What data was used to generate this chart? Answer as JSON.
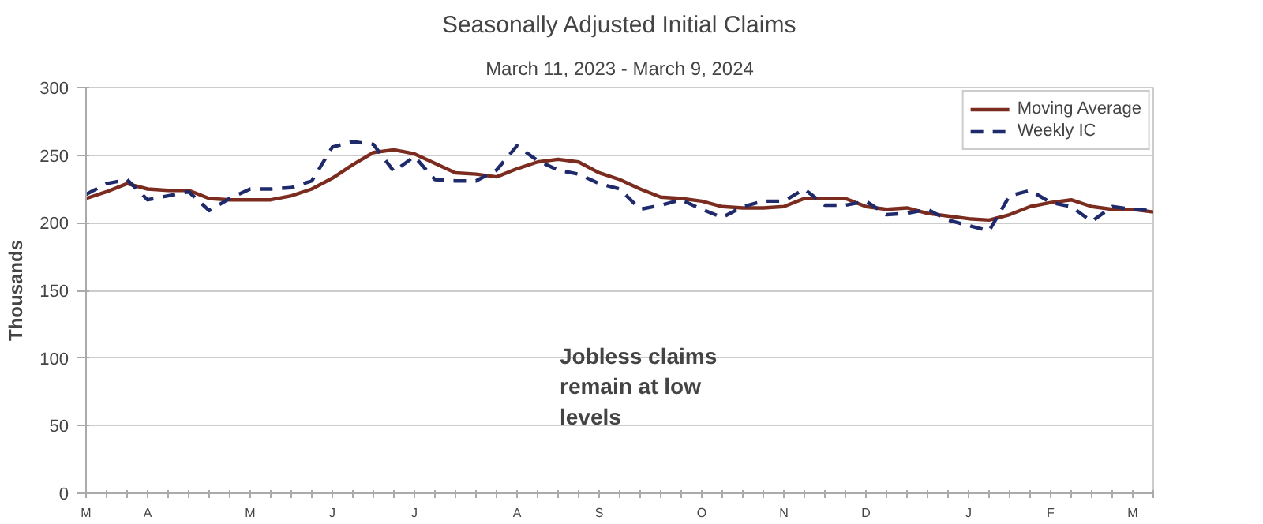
{
  "chart_data": {
    "type": "line",
    "title": "Seasonally Adjusted Initial Claims",
    "subtitle": "March 11, 2023 - March 9, 2024",
    "ylabel": "Thousands",
    "categories": [
      "M",
      null,
      null,
      "A",
      null,
      null,
      null,
      null,
      "M",
      null,
      null,
      null,
      "J",
      null,
      null,
      null,
      "J",
      null,
      null,
      null,
      null,
      "A",
      null,
      null,
      null,
      "S",
      null,
      null,
      null,
      null,
      "O",
      null,
      null,
      null,
      "N",
      null,
      null,
      null,
      "D",
      null,
      null,
      null,
      null,
      "J",
      null,
      null,
      null,
      "F",
      null,
      null,
      null,
      "M",
      null
    ],
    "series": [
      {
        "name": "Moving Average",
        "color": "#7b2c1f",
        "line_style": "solid",
        "values": [
          218,
          223,
          229,
          225,
          224,
          224,
          218,
          217,
          217,
          217,
          220,
          225,
          233,
          243,
          252,
          254,
          251,
          244,
          237,
          236,
          234,
          240,
          245,
          247,
          245,
          237,
          232,
          225,
          219,
          218,
          216,
          212,
          211,
          211,
          212,
          218,
          218,
          218,
          212,
          210,
          211,
          207,
          205,
          203,
          202,
          206,
          212,
          215,
          217,
          212,
          210,
          210,
          208
        ]
      },
      {
        "name": "Weekly IC",
        "color": "#1f2a6b",
        "line_style": "dashed",
        "values": [
          221,
          229,
          232,
          217,
          220,
          223,
          209,
          218,
          225,
          225,
          226,
          231,
          256,
          260,
          258,
          238,
          249,
          232,
          231,
          231,
          239,
          257,
          246,
          239,
          236,
          229,
          225,
          210,
          213,
          217,
          210,
          204,
          212,
          216,
          216,
          225,
          213,
          213,
          216,
          206,
          207,
          210,
          202,
          198,
          194,
          220,
          224,
          215,
          212,
          201,
          212,
          210,
          209
        ]
      }
    ],
    "ylim": [
      0,
      300
    ],
    "yticks": [
      0,
      50,
      100,
      150,
      200,
      250,
      300
    ],
    "grid": "y",
    "legend": "top right",
    "annotations": [
      "Jobless claims\nremain at low\nlevels"
    ]
  }
}
